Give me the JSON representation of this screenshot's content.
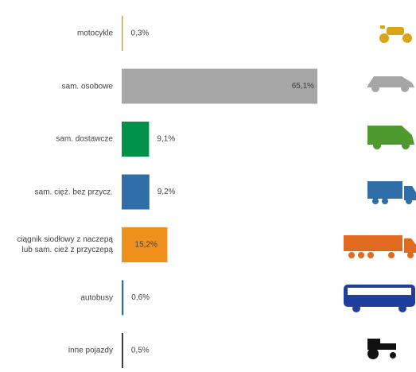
{
  "chart_data": {
    "type": "bar",
    "categories": [
      "motocykle",
      "sam. osobowe",
      "sam. dostawcze",
      "sam. cięż. bez przycz.",
      "ciągnik siodłowy z naczepą\nlub sam. cież z przyczepą",
      "autobusy",
      "inne pojazdy"
    ],
    "values": [
      0.3,
      65.1,
      9.1,
      9.2,
      15.2,
      0.6,
      0.5
    ],
    "value_labels": [
      "0,3%",
      "65,1%",
      "9,1%",
      "9,2%",
      "15,2%",
      "0,6%",
      "0,5%"
    ],
    "colors": [
      "#d9a514",
      "#a6a6a6",
      "#00924a",
      "#2f6ea8",
      "#f0901c",
      "#2f6ea8",
      "#333333"
    ]
  }
}
